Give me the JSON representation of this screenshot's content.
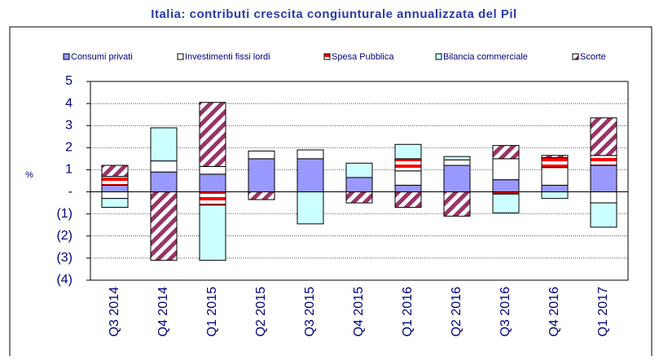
{
  "chart_data": {
    "type": "stacked-bar",
    "title": "Italia: contributi crescita congiunturale annualizzata del Pil",
    "y_label": "%",
    "categories": [
      "Q3 2014",
      "Q4 2014",
      "Q1 2015",
      "Q2 2015",
      "Q3 2015",
      "Q4 2015",
      "Q1 2016",
      "Q2 2016",
      "Q3 2016",
      "Q4 2016",
      "Q1 2017"
    ],
    "series": [
      {
        "name": "Consumi privati",
        "color": "#9999ff",
        "values": [
          0.3,
          0.9,
          0.8,
          1.5,
          1.5,
          0.65,
          0.3,
          1.2,
          0.55,
          0.3,
          1.2
        ]
      },
      {
        "name": "Investimenti fissi lordi",
        "color": "#ffffff",
        "values": [
          -0.3,
          0.5,
          0.35,
          0.35,
          0.4,
          0,
          0.65,
          0.25,
          0.95,
          0.8,
          -0.5
        ]
      },
      {
        "name": "Spesa Pubblica",
        "color": "#ff0000",
        "pattern": "stripe",
        "values": [
          0.4,
          0,
          -0.6,
          0,
          0,
          0,
          0.55,
          0,
          -0.1,
          0.45,
          0.45
        ]
      },
      {
        "name": "Bilancia commerciale",
        "color": "#ccffff",
        "values": [
          -0.4,
          1.5,
          -2.5,
          0,
          -1.45,
          0.65,
          0.65,
          0.15,
          -0.85,
          -0.3,
          -1.1
        ]
      },
      {
        "name": "Scorte",
        "color": "#993366",
        "pattern": "diagonal",
        "values": [
          0.5,
          -3.1,
          2.9,
          -0.35,
          0,
          -0.5,
          -0.7,
          -1.1,
          0.6,
          0.1,
          1.7
        ]
      }
    ],
    "ylim": [
      -4,
      5
    ],
    "yticks": [
      {
        "value": -4,
        "label": "(4)"
      },
      {
        "value": -3,
        "label": "(3)"
      },
      {
        "value": -2,
        "label": "(2)"
      },
      {
        "value": -1,
        "label": "(1)"
      },
      {
        "value": 0,
        "label": "-"
      },
      1,
      2,
      3,
      4,
      5
    ],
    "grid": true,
    "legend": "top"
  }
}
